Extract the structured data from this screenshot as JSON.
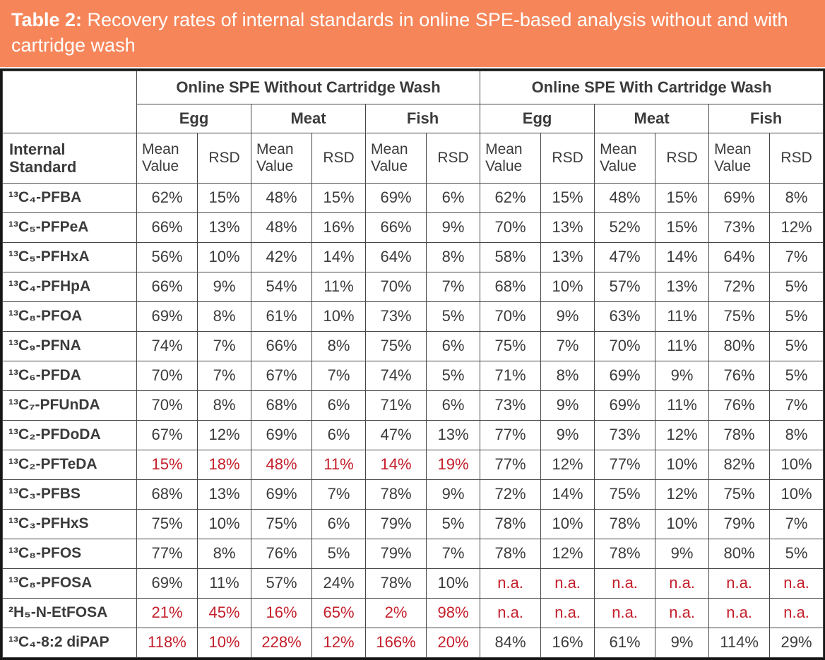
{
  "caption": {
    "label": "Table 2:",
    "text": " Recovery rates of internal standards in online SPE-based analysis without and with cartridge wash"
  },
  "colors": {
    "accent_orange": "#f6865a",
    "flag_red": "#c41e2a",
    "text": "#3b3b3b",
    "border": "#474747"
  },
  "table": {
    "groups": [
      "Online SPE Without Cartridge Wash",
      "Online SPE With Cartridge Wash"
    ],
    "samples": [
      "Egg",
      "Meat",
      "Fish"
    ],
    "corner_label": "Internal Standard",
    "mean_label": "Mean Value",
    "rsd_label": "RSD",
    "rows": [
      {
        "standard": "¹³C₄-PFBA",
        "values": [
          "62%",
          "15%",
          "48%",
          "15%",
          "69%",
          "6%",
          "62%",
          "15%",
          "48%",
          "15%",
          "69%",
          "8%"
        ],
        "red": []
      },
      {
        "standard": "¹³C₅-PFPeA",
        "values": [
          "66%",
          "13%",
          "48%",
          "16%",
          "66%",
          "9%",
          "70%",
          "13%",
          "52%",
          "15%",
          "73%",
          "12%"
        ],
        "red": []
      },
      {
        "standard": "¹³C₅-PFHxA",
        "values": [
          "56%",
          "10%",
          "42%",
          "14%",
          "64%",
          "8%",
          "58%",
          "13%",
          "47%",
          "14%",
          "64%",
          "7%"
        ],
        "red": []
      },
      {
        "standard": "¹³C₄-PFHpA",
        "values": [
          "66%",
          "9%",
          "54%",
          "11%",
          "70%",
          "7%",
          "68%",
          "10%",
          "57%",
          "13%",
          "72%",
          "5%"
        ],
        "red": []
      },
      {
        "standard": "¹³C₈-PFOA",
        "values": [
          "69%",
          "8%",
          "61%",
          "10%",
          "73%",
          "5%",
          "70%",
          "9%",
          "63%",
          "11%",
          "75%",
          "5%"
        ],
        "red": []
      },
      {
        "standard": "¹³C₉-PFNA",
        "values": [
          "74%",
          "7%",
          "66%",
          "8%",
          "75%",
          "6%",
          "75%",
          "7%",
          "70%",
          "11%",
          "80%",
          "5%"
        ],
        "red": []
      },
      {
        "standard": "¹³C₆-PFDA",
        "values": [
          "70%",
          "7%",
          "67%",
          "7%",
          "74%",
          "5%",
          "71%",
          "8%",
          "69%",
          "9%",
          "76%",
          "5%"
        ],
        "red": []
      },
      {
        "standard": "¹³C₇-PFUnDA",
        "values": [
          "70%",
          "8%",
          "68%",
          "6%",
          "71%",
          "6%",
          "73%",
          "9%",
          "69%",
          "11%",
          "76%",
          "7%"
        ],
        "red": []
      },
      {
        "standard": "¹³C₂-PFDoDA",
        "values": [
          "67%",
          "12%",
          "69%",
          "6%",
          "47%",
          "13%",
          "77%",
          "9%",
          "73%",
          "12%",
          "78%",
          "8%"
        ],
        "red": []
      },
      {
        "standard": "¹³C₂-PFTeDA",
        "values": [
          "15%",
          "18%",
          "48%",
          "11%",
          "14%",
          "19%",
          "77%",
          "12%",
          "77%",
          "10%",
          "82%",
          "10%"
        ],
        "red": [
          0,
          1,
          2,
          3,
          4,
          5
        ]
      },
      {
        "standard": "¹³C₃-PFBS",
        "values": [
          "68%",
          "13%",
          "69%",
          "7%",
          "78%",
          "9%",
          "72%",
          "14%",
          "75%",
          "12%",
          "75%",
          "10%"
        ],
        "red": []
      },
      {
        "standard": "¹³C₃-PFHxS",
        "values": [
          "75%",
          "10%",
          "75%",
          "6%",
          "79%",
          "5%",
          "78%",
          "10%",
          "78%",
          "10%",
          "79%",
          "7%"
        ],
        "red": []
      },
      {
        "standard": "¹³C₈-PFOS",
        "values": [
          "77%",
          "8%",
          "76%",
          "5%",
          "79%",
          "7%",
          "78%",
          "12%",
          "78%",
          "9%",
          "80%",
          "5%"
        ],
        "red": []
      },
      {
        "standard": "¹³C₈-PFOSA",
        "values": [
          "69%",
          "11%",
          "57%",
          "24%",
          "78%",
          "10%",
          "n.a.",
          "n.a.",
          "n.a.",
          "n.a.",
          "n.a.",
          "n.a."
        ],
        "red": [
          6,
          7,
          8,
          9,
          10,
          11
        ]
      },
      {
        "standard": "²H₅-N-EtFOSA",
        "values": [
          "21%",
          "45%",
          "16%",
          "65%",
          "2%",
          "98%",
          "n.a.",
          "n.a.",
          "n.a.",
          "n.a.",
          "n.a.",
          "n.a."
        ],
        "red": [
          0,
          1,
          2,
          3,
          4,
          5,
          6,
          7,
          8,
          9,
          10,
          11
        ]
      },
      {
        "standard": "¹³C₄-8:2 diPAP",
        "values": [
          "118%",
          "10%",
          "228%",
          "12%",
          "166%",
          "20%",
          "84%",
          "16%",
          "61%",
          "9%",
          "114%",
          "29%"
        ],
        "red": [
          0,
          1,
          2,
          3,
          4,
          5
        ]
      }
    ]
  }
}
